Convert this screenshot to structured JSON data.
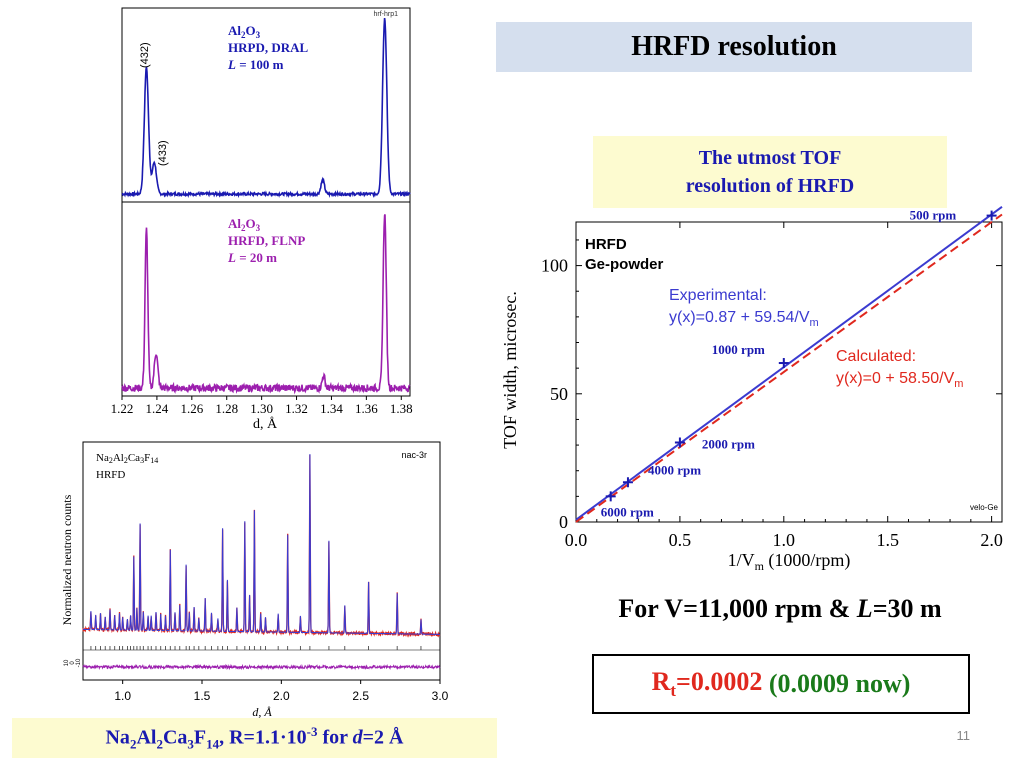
{
  "slide": {
    "title": "HRFD resolution",
    "callout": [
      "The utmost TOF",
      "resolution of HRFD"
    ],
    "speed": {
      "prefix": "For V=11,000 rpm & ",
      "L": "L",
      "suffix": "=30 m"
    },
    "rt": {
      "R": "R",
      "sub": "t",
      "value": "=0.0002",
      "extra": "(0.0009 now)"
    },
    "caption": {
      "parts": [
        "Na",
        "2",
        "Al",
        "2",
        "Ca",
        "3",
        "F",
        "14",
        ", R=1.1·10",
        "-3",
        " for ",
        "d",
        "=2 Å"
      ]
    },
    "page_number": "11",
    "colors": {
      "blue": "#1a1ab0",
      "red": "#e0281e",
      "green": "#1a7a1a",
      "purple": "#9c1fae"
    }
  },
  "chart_data": [
    {
      "id": "al2o3-comparison",
      "type": "line",
      "tag": "hrf-hrp1",
      "xlabel": "d, Å",
      "xlim": [
        1.22,
        1.385
      ],
      "x_ticks": [
        "1.22",
        "1.24",
        "1.26",
        "1.28",
        "1.30",
        "1.32",
        "1.34",
        "1.36",
        "1.38"
      ],
      "peak_labels": [
        "(432)",
        "(433)"
      ],
      "panels": [
        {
          "label": {
            "formula": [
              "Al",
              "2",
              "O",
              "3"
            ],
            "line2": "HRPD, DRAL",
            "L": "L",
            "Lval": " = 100 m"
          },
          "color": "#1a1ab0",
          "peaks": [
            {
              "d": 1.234,
              "height": 0.72,
              "width": 0.0012
            },
            {
              "d": 1.2385,
              "height": 0.18,
              "width": 0.0012
            },
            {
              "d": 1.335,
              "height": 0.08,
              "width": 0.001
            },
            {
              "d": 1.3705,
              "height": 1.0,
              "width": 0.0012
            }
          ]
        },
        {
          "label": {
            "formula": [
              "Al",
              "2",
              "O",
              "3"
            ],
            "line2": "HRFD, FLNP",
            "L": "L",
            "Lval": " = 20 m"
          },
          "color": "#9c1fae",
          "peaks": [
            {
              "d": 1.234,
              "height": 0.9,
              "width": 0.0008
            },
            {
              "d": 1.2395,
              "height": 0.2,
              "width": 0.001
            },
            {
              "d": 1.3355,
              "height": 0.07,
              "width": 0.0008
            },
            {
              "d": 1.3705,
              "height": 1.0,
              "width": 0.0009
            }
          ]
        }
      ]
    },
    {
      "id": "nac-rietveld",
      "type": "line",
      "tag": "nac-3r",
      "title_parts": [
        "Na",
        "2",
        "Al",
        "2",
        "Ca",
        "3",
        "F",
        "14"
      ],
      "title_line2": "HRFD",
      "xlabel": "d, Å",
      "ylabel": "Normalized neutron counts",
      "xlim": [
        0.75,
        3.0
      ],
      "x_ticks": [
        "1.0",
        "1.5",
        "2.0",
        "2.5",
        "3.0"
      ],
      "diff_ticks": [
        "10",
        "0",
        "-10"
      ],
      "peaks": [
        [
          0.8,
          0.1
        ],
        [
          0.83,
          0.08
        ],
        [
          0.86,
          0.09
        ],
        [
          0.89,
          0.07
        ],
        [
          0.92,
          0.11
        ],
        [
          0.95,
          0.08
        ],
        [
          0.98,
          0.09
        ],
        [
          1.0,
          0.07
        ],
        [
          1.03,
          0.06
        ],
        [
          1.05,
          0.08
        ],
        [
          1.07,
          0.4
        ],
        [
          1.09,
          0.12
        ],
        [
          1.11,
          0.58
        ],
        [
          1.13,
          0.1
        ],
        [
          1.16,
          0.08
        ],
        [
          1.18,
          0.08
        ],
        [
          1.21,
          0.1
        ],
        [
          1.24,
          0.09
        ],
        [
          1.27,
          0.08
        ],
        [
          1.3,
          0.44
        ],
        [
          1.33,
          0.1
        ],
        [
          1.36,
          0.14
        ],
        [
          1.4,
          0.36
        ],
        [
          1.42,
          0.1
        ],
        [
          1.45,
          0.13
        ],
        [
          1.48,
          0.07
        ],
        [
          1.52,
          0.18
        ],
        [
          1.56,
          0.1
        ],
        [
          1.6,
          0.07
        ],
        [
          1.63,
          0.56
        ],
        [
          1.66,
          0.28
        ],
        [
          1.72,
          0.13
        ],
        [
          1.77,
          0.6
        ],
        [
          1.8,
          0.2
        ],
        [
          1.83,
          0.66
        ],
        [
          1.87,
          0.1
        ],
        [
          1.9,
          0.08
        ],
        [
          1.98,
          0.1
        ],
        [
          2.04,
          0.53
        ],
        [
          2.12,
          0.09
        ],
        [
          2.18,
          0.97
        ],
        [
          2.3,
          0.5
        ],
        [
          2.4,
          0.15
        ],
        [
          2.55,
          0.28
        ],
        [
          2.73,
          0.22
        ],
        [
          2.88,
          0.08
        ]
      ]
    },
    {
      "id": "tof-width",
      "type": "scatter",
      "tag": "velo-Ge",
      "title_lines": [
        "HRFD",
        "Ge-powder"
      ],
      "xlabel": {
        "pre": "1/V",
        "sub": "m",
        "post": " (1000/rpm)"
      },
      "ylabel": "TOF width, microsec.",
      "xlim": [
        0,
        2.05
      ],
      "ylim": [
        0,
        117
      ],
      "x_ticks": [
        "0.0",
        "0.5",
        "1.0",
        "1.5",
        "2.0"
      ],
      "y_ticks": [
        "0",
        "50",
        "100"
      ],
      "points": [
        {
          "label": "500 rpm",
          "x": 2.0,
          "y": 119.5
        },
        {
          "label": "1000 rpm",
          "x": 1.0,
          "y": 62.0
        },
        {
          "label": "2000 rpm",
          "x": 0.5,
          "y": 31.0
        },
        {
          "label": "4000 rpm",
          "x": 0.25,
          "y": 15.5
        },
        {
          "label": "6000 rpm",
          "x": 0.167,
          "y": 10.0
        }
      ],
      "fits": [
        {
          "name": "Experimental:",
          "eq_pre": "y(x)=0.87 + 59.54/V",
          "eq_sub": "m",
          "intercept": 0.87,
          "slope": 59.54,
          "color": "#3b3bd0",
          "dashed": false
        },
        {
          "name": "Calculated:",
          "eq_pre": "y(x)=0 + 58.50/V",
          "eq_sub": "m",
          "intercept": 0.0,
          "slope": 58.5,
          "color": "#e0281e",
          "dashed": true
        }
      ]
    }
  ]
}
